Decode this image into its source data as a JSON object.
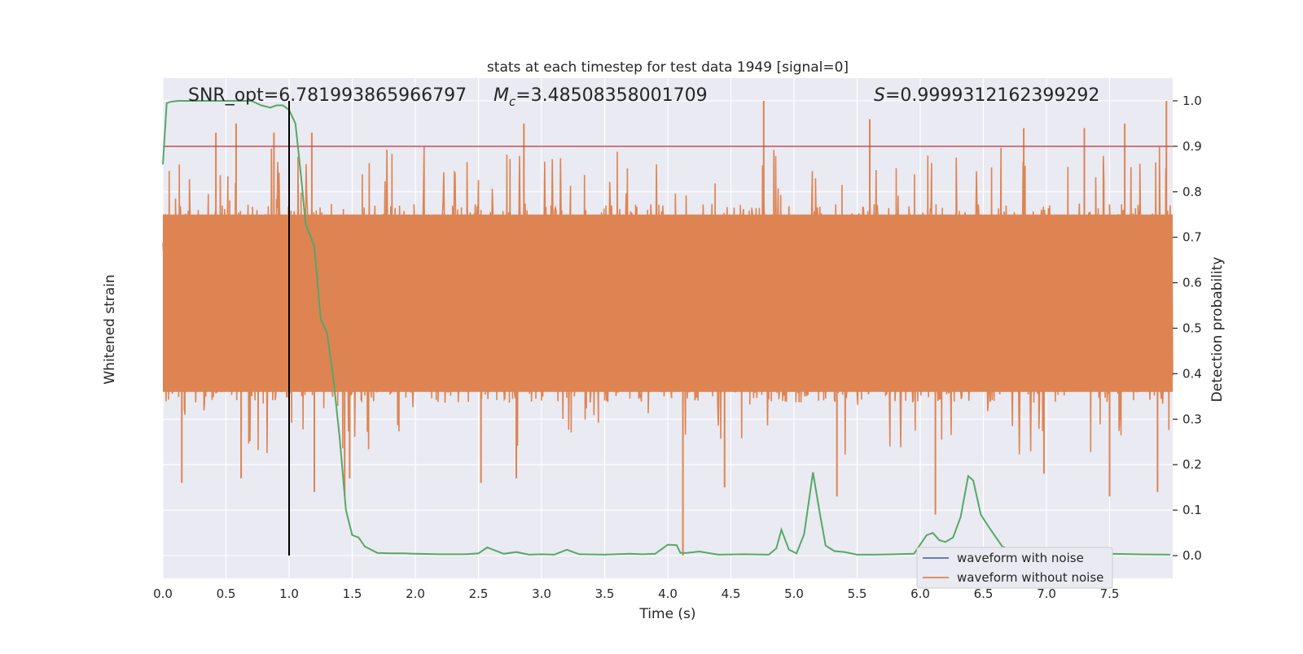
{
  "chart_data": {
    "type": "line",
    "title": "stats at each timestep for test data 1949 [signal=0]",
    "xlabel": "Time (s)",
    "ylabel_left": "Whitened strain",
    "ylabel_right": "Detection probability",
    "xlim": [
      0,
      8.0
    ],
    "ylim_right": [
      -0.05,
      1.05
    ],
    "x_ticks": [
      "0.0",
      "0.5",
      "1.0",
      "1.5",
      "2.0",
      "2.5",
      "3.0",
      "3.5",
      "4.0",
      "4.5",
      "5.0",
      "5.5",
      "6.0",
      "6.5",
      "7.0",
      "7.5"
    ],
    "y_ticks_right": [
      "0.0",
      "0.1",
      "0.2",
      "0.3",
      "0.4",
      "0.5",
      "0.6",
      "0.7",
      "0.8",
      "0.9",
      "1.0"
    ],
    "grid": true,
    "legend_position": "bottom-right",
    "annotations": {
      "snr": "SNR_opt=6.781993865966797",
      "mc_symbol": "M",
      "mc_sub": "c",
      "mc_value": "=3.48508358001709",
      "s_symbol": "S",
      "s_value": "=0.9999312162399292"
    },
    "threshold": 0.9,
    "event_time": 1.0,
    "series": [
      {
        "name": "waveform with noise",
        "color": "#4c72b0"
      },
      {
        "name": "waveform without noise",
        "color": "#dd8452"
      }
    ],
    "probability": {
      "color": "#55a868",
      "x": [
        0.0,
        0.03,
        0.06,
        0.12,
        0.25,
        0.4,
        0.55,
        0.7,
        0.78,
        0.85,
        0.9,
        0.95,
        1.0,
        1.05,
        1.1,
        1.13,
        1.2,
        1.25,
        1.3,
        1.35,
        1.4,
        1.45,
        1.5,
        1.55,
        1.6,
        1.7,
        1.8,
        1.9,
        2.0,
        2.2,
        2.4,
        2.5,
        2.57,
        2.7,
        2.8,
        2.9,
        3.0,
        3.1,
        3.2,
        3.3,
        3.5,
        3.7,
        3.8,
        3.9,
        4.0,
        4.07,
        4.1,
        4.15,
        4.25,
        4.4,
        4.6,
        4.8,
        4.86,
        4.9,
        4.96,
        5.02,
        5.08,
        5.15,
        5.2,
        5.25,
        5.32,
        5.4,
        5.5,
        5.65,
        5.8,
        5.95,
        6.05,
        6.1,
        6.15,
        6.2,
        6.26,
        6.32,
        6.38,
        6.42,
        6.48,
        6.55,
        6.65,
        6.8,
        7.0,
        7.2,
        7.5,
        7.7,
        7.98
      ],
      "y": [
        0.86,
        0.995,
        0.998,
        1.0,
        1.0,
        1.0,
        1.0,
        1.0,
        0.99,
        0.985,
        0.99,
        0.99,
        0.98,
        0.95,
        0.82,
        0.73,
        0.68,
        0.52,
        0.49,
        0.39,
        0.26,
        0.1,
        0.045,
        0.04,
        0.02,
        0.006,
        0.005,
        0.005,
        0.004,
        0.003,
        0.003,
        0.005,
        0.018,
        0.004,
        0.008,
        0.002,
        0.003,
        0.002,
        0.013,
        0.003,
        0.002,
        0.004,
        0.003,
        0.004,
        0.024,
        0.023,
        0.006,
        0.006,
        0.009,
        0.002,
        0.003,
        0.002,
        0.016,
        0.057,
        0.013,
        0.005,
        0.047,
        0.183,
        0.1,
        0.022,
        0.01,
        0.008,
        0.002,
        0.002,
        0.003,
        0.004,
        0.045,
        0.05,
        0.034,
        0.03,
        0.04,
        0.085,
        0.175,
        0.165,
        0.09,
        0.06,
        0.02,
        0.005,
        0.003,
        0.003,
        0.004,
        0.003,
        0.002
      ]
    },
    "noise_strain": {
      "color": "#dd8452",
      "note_units": "probability-axis equivalent",
      "base_low": 0.36,
      "base_high": 0.75,
      "spikes": [
        {
          "x": 0.15,
          "y": 0.16
        },
        {
          "x": 0.42,
          "y": 0.93
        },
        {
          "x": 0.58,
          "y": 0.95
        },
        {
          "x": 0.62,
          "y": 0.17
        },
        {
          "x": 0.88,
          "y": 0.93
        },
        {
          "x": 1.18,
          "y": 0.93
        },
        {
          "x": 1.2,
          "y": 0.14
        },
        {
          "x": 1.44,
          "y": 0.13
        },
        {
          "x": 1.48,
          "y": 0.17
        },
        {
          "x": 2.52,
          "y": 0.16
        },
        {
          "x": 2.8,
          "y": 0.17
        },
        {
          "x": 2.86,
          "y": 0.95
        },
        {
          "x": 4.12,
          "y": 0.0
        },
        {
          "x": 4.45,
          "y": 0.15
        },
        {
          "x": 4.76,
          "y": 1.0
        },
        {
          "x": 5.34,
          "y": 0.13
        },
        {
          "x": 5.6,
          "y": 0.96
        },
        {
          "x": 6.12,
          "y": 0.09
        },
        {
          "x": 6.82,
          "y": 0.94
        },
        {
          "x": 6.98,
          "y": 0.18
        },
        {
          "x": 7.3,
          "y": 0.94
        },
        {
          "x": 7.5,
          "y": 0.13
        },
        {
          "x": 7.62,
          "y": 0.95
        },
        {
          "x": 7.88,
          "y": 0.14
        },
        {
          "x": 7.95,
          "y": 1.0
        }
      ]
    }
  }
}
